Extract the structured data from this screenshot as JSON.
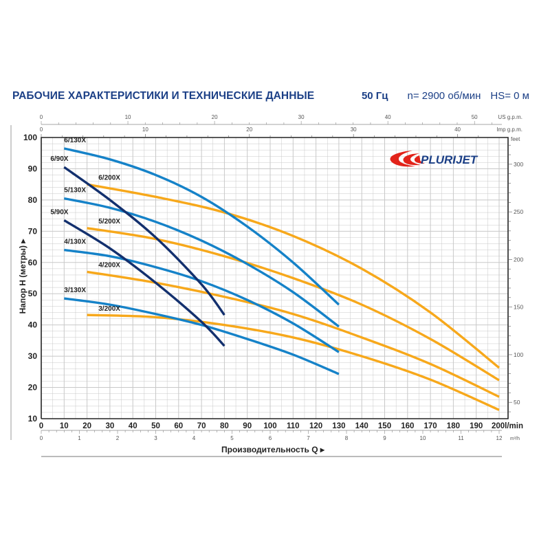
{
  "header": {
    "title": "РАБОЧИЕ ХАРАКТЕРИСТИКИ И ТЕХНИЧЕСКИЕ ДАННЫЕ",
    "frequency": "50 Гц",
    "speed": "n= 2900 об/мин",
    "suction": "HS= 0 м"
  },
  "brand": {
    "name": "PLURIJET",
    "primary_color": "#1b3f86",
    "accent_color": "#e2231a"
  },
  "axes": {
    "y_title": "Напор H (метры) ▸",
    "x_title": "Производительность Q ▸",
    "x_unit_lmin": "l/min",
    "x_unit_m3h": "m³/h",
    "top_us_unit": "US g.p.m.",
    "top_imp_unit": "Imp g.p.m.",
    "right_unit": "feet"
  },
  "colors": {
    "series_130X": "#1582c8",
    "series_90X": "#13306e",
    "series_200X": "#f7a81b",
    "grid": "#c8c8c8",
    "axis": "#222222"
  },
  "chart_data": {
    "type": "line",
    "title": "РАБОЧИЕ ХАРАКТЕРИСТИКИ И ТЕХНИЧЕСКИЕ ДАННЫЕ",
    "subtitle": "50 Гц  n= 2900 об/мин  HS= 0 м",
    "xlabel": "Производительность Q (l/min)",
    "ylabel": "Напор H (метры)",
    "xlim": [
      0,
      200
    ],
    "ylim": [
      10,
      100
    ],
    "grid": true,
    "x_ticks": [
      0,
      10,
      20,
      30,
      40,
      50,
      60,
      70,
      80,
      90,
      100,
      110,
      120,
      130,
      140,
      150,
      160,
      170,
      180,
      190,
      200
    ],
    "y_ticks": [
      10,
      20,
      30,
      40,
      50,
      60,
      70,
      80,
      90,
      100
    ],
    "secondary_axes": {
      "m3h_ticks": [
        0,
        1,
        2,
        3,
        4,
        5,
        6,
        7,
        8,
        9,
        10,
        11,
        12
      ],
      "us_gpm_ticks": [
        0,
        10,
        20,
        30,
        40,
        50
      ],
      "imp_gpm_ticks": [
        0,
        10,
        20,
        30,
        40
      ],
      "feet_ticks": [
        50,
        100,
        150,
        200,
        250,
        300
      ]
    },
    "series": [
      {
        "name": "6/130X",
        "group": "130X",
        "x": [
          10,
          30,
          50,
          70,
          90,
          110,
          130
        ],
        "y": [
          96.5,
          93,
          88,
          81,
          71.5,
          60,
          46.5
        ]
      },
      {
        "name": "5/130X",
        "group": "130X",
        "x": [
          10,
          30,
          50,
          70,
          90,
          110,
          130
        ],
        "y": [
          80.5,
          77.5,
          73,
          67,
          59.5,
          50.5,
          39.5
        ]
      },
      {
        "name": "4/130X",
        "group": "130X",
        "x": [
          10,
          30,
          50,
          70,
          90,
          110,
          130
        ],
        "y": [
          64,
          62,
          58.5,
          54,
          48,
          40.5,
          31.3
        ]
      },
      {
        "name": "3/130X",
        "group": "130X",
        "x": [
          10,
          30,
          50,
          70,
          90,
          110,
          130
        ],
        "y": [
          48.5,
          46.5,
          43.5,
          40,
          35.5,
          30.5,
          24.3
        ]
      },
      {
        "name": "6/90X",
        "group": "90X",
        "x": [
          10,
          30,
          50,
          70,
          80
        ],
        "y": [
          90.5,
          80,
          68,
          53,
          43.2
        ]
      },
      {
        "name": "5/90X",
        "group": "90X",
        "x": [
          10,
          30,
          50,
          70,
          80
        ],
        "y": [
          73.5,
          64.5,
          53.5,
          41,
          33.3
        ]
      },
      {
        "name": "6/200X",
        "group": "200X",
        "x": [
          20,
          50,
          80,
          110,
          140,
          170,
          200
        ],
        "y": [
          85,
          81,
          76,
          68.5,
          58,
          44,
          26.3
        ]
      },
      {
        "name": "5/200X",
        "group": "200X",
        "x": [
          20,
          50,
          80,
          110,
          140,
          170,
          200
        ],
        "y": [
          71,
          67.5,
          62,
          55,
          46.5,
          35.5,
          22.3
        ]
      },
      {
        "name": "4/200X",
        "group": "200X",
        "x": [
          20,
          50,
          80,
          110,
          140,
          170,
          200
        ],
        "y": [
          57,
          53.5,
          49,
          43.5,
          36,
          27.5,
          17
        ]
      },
      {
        "name": "3/200X",
        "group": "200X",
        "x": [
          20,
          50,
          80,
          110,
          140,
          170,
          200
        ],
        "y": [
          43.2,
          42.5,
          40,
          36,
          30,
          22.5,
          12.8
        ]
      }
    ],
    "labels": [
      {
        "text": "6/130X",
        "x": 10,
        "y": 98.5
      },
      {
        "text": "6/90X",
        "x": 4,
        "y": 92.5
      },
      {
        "text": "6/200X",
        "x": 25,
        "y": 86.5
      },
      {
        "text": "5/130X",
        "x": 10,
        "y": 82.5
      },
      {
        "text": "5/90X",
        "x": 4,
        "y": 75.5
      },
      {
        "text": "5/200X",
        "x": 25,
        "y": 72.5
      },
      {
        "text": "4/130X",
        "x": 10,
        "y": 66
      },
      {
        "text": "4/200X",
        "x": 25,
        "y": 58.5
      },
      {
        "text": "3/130X",
        "x": 10,
        "y": 50.5
      },
      {
        "text": "3/200X",
        "x": 25,
        "y": 44.5
      }
    ]
  }
}
